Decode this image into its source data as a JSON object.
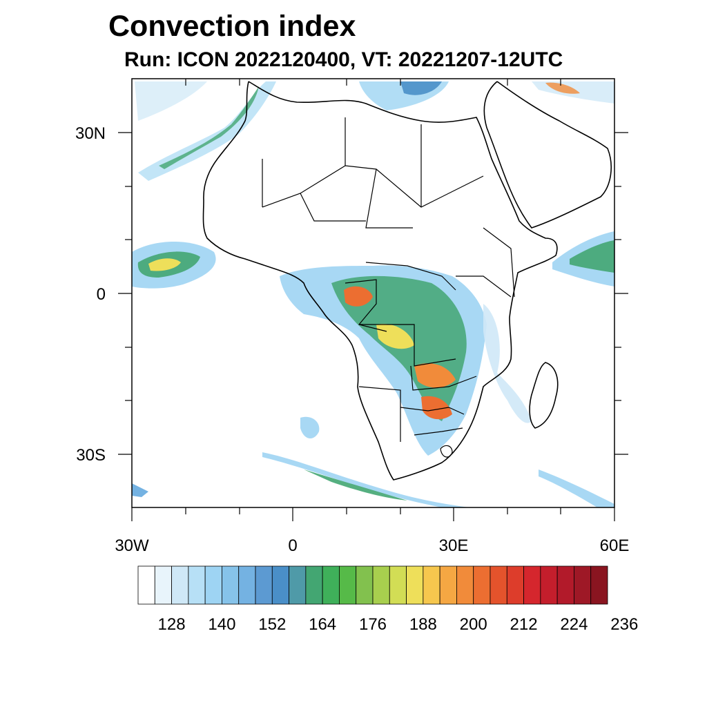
{
  "title": "Convection index",
  "subtitle": "Run: ICON 2022120400,  VT: 20221207-12UTC",
  "axes": {
    "x_ticks": [
      "30W",
      "0",
      "30E",
      "60E"
    ],
    "y_ticks": [
      "30N",
      "0",
      "30S"
    ],
    "lon_range": [
      -30,
      60
    ],
    "lat_range": [
      -40,
      40
    ]
  },
  "colorbar": {
    "labels": [
      "128",
      "140",
      "152",
      "164",
      "176",
      "188",
      "200",
      "212",
      "224",
      "236"
    ],
    "colors": [
      "#ffffff",
      "#e8f4fb",
      "#cfe8f7",
      "#b7e0f6",
      "#9ed4f3",
      "#86c3ea",
      "#74b2e2",
      "#5c9ad2",
      "#4a8fc8",
      "#4f9aa8",
      "#43a672",
      "#3fb05a",
      "#56ba48",
      "#82c14e",
      "#a8cf4e",
      "#d2dd55",
      "#eedf5a",
      "#f6c74e",
      "#f5a743",
      "#f18b3a",
      "#ec6e31",
      "#e4532c",
      "#dd3d2b",
      "#d5262d",
      "#c41e2c",
      "#b21a2a",
      "#9e1826",
      "#8a1520"
    ]
  },
  "legend_colors": {
    "low": "#b7e0f6",
    "mid": "#43a672",
    "high": "#eedf5a",
    "very_high": "#e4532c",
    "coast": "#000000"
  }
}
